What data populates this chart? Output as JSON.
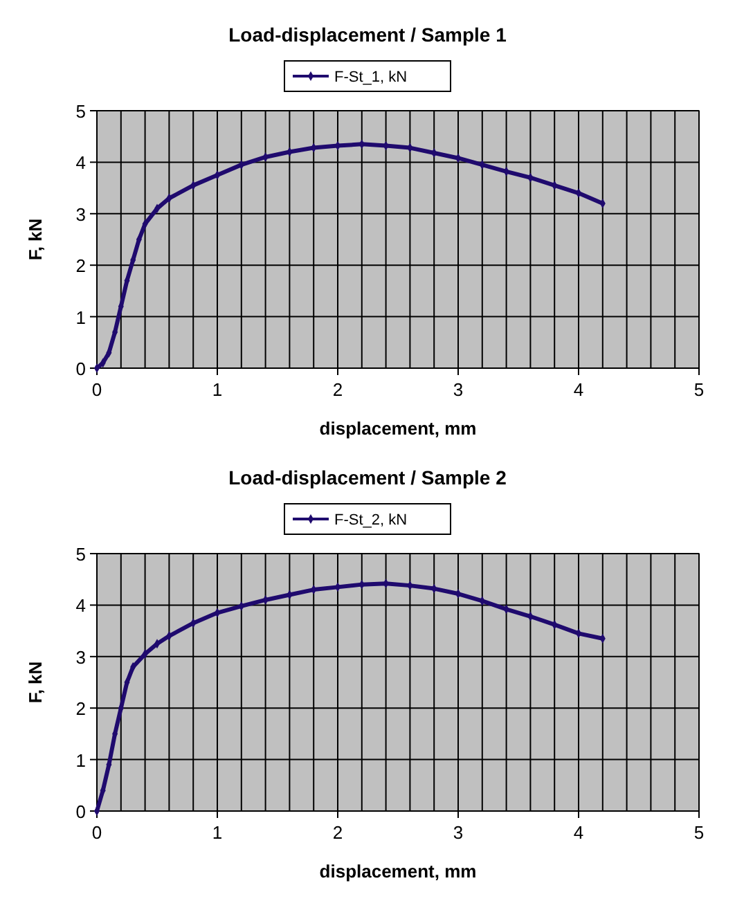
{
  "chart_data": [
    {
      "type": "line",
      "title": "Load-displacement / Sample 1",
      "xlabel": "displacement, mm",
      "ylabel": "F, kN",
      "legend": "top",
      "grid": true,
      "marker": "diamond",
      "line_style": "solid",
      "xlim": [
        0,
        5
      ],
      "ylim": [
        0,
        5
      ],
      "xticks": [
        0,
        {
          "value": 0.2,
          "label": null
        },
        {
          "value": 0.4,
          "label": null
        },
        {
          "value": 0.6,
          "label": null
        },
        {
          "value": 0.8,
          "label": null
        },
        1,
        {
          "value": 1.2,
          "label": null
        },
        {
          "value": 1.4,
          "label": null
        },
        {
          "value": 1.6,
          "label": null
        },
        {
          "value": 1.8,
          "label": null
        },
        2,
        {
          "value": 2.2,
          "label": null
        },
        {
          "value": 2.4,
          "label": null
        },
        {
          "value": 2.6,
          "label": null
        },
        {
          "value": 2.8,
          "label": null
        },
        3,
        {
          "value": 3.2,
          "label": null
        },
        {
          "value": 3.4,
          "label": null
        },
        {
          "value": 3.6,
          "label": null
        },
        {
          "value": 3.8,
          "label": null
        },
        4,
        {
          "value": 4.2,
          "label": null
        },
        {
          "value": 4.4,
          "label": null
        },
        {
          "value": 4.6,
          "label": null
        },
        {
          "value": 4.8,
          "label": null
        },
        5
      ],
      "yticks": [
        0,
        1,
        2,
        3,
        4,
        5
      ],
      "series": [
        {
          "name": "F-St_1, kN",
          "color": "#1f0a6e",
          "x": [
            0,
            0.05,
            0.1,
            0.15,
            0.2,
            0.25,
            0.3,
            0.35,
            0.4,
            0.5,
            0.6,
            0.8,
            1.0,
            1.2,
            1.4,
            1.6,
            1.8,
            2.0,
            2.2,
            2.4,
            2.6,
            2.8,
            3.0,
            3.2,
            3.4,
            3.6,
            3.8,
            4.0,
            4.2
          ],
          "values": [
            0,
            0.1,
            0.3,
            0.7,
            1.2,
            1.7,
            2.1,
            2.5,
            2.8,
            3.1,
            3.3,
            3.55,
            3.75,
            3.95,
            4.1,
            4.2,
            4.28,
            4.32,
            4.35,
            4.32,
            4.28,
            4.18,
            4.08,
            3.95,
            3.82,
            3.7,
            3.55,
            3.4,
            3.2
          ]
        }
      ]
    },
    {
      "type": "line",
      "title": "Load-displacement / Sample 2",
      "xlabel": "displacement, mm",
      "ylabel": "F, kN",
      "legend": "top",
      "grid": true,
      "marker": "diamond",
      "line_style": "solid",
      "xlim": [
        0,
        5
      ],
      "ylim": [
        0,
        5
      ],
      "xticks": [
        0,
        {
          "value": 0.2,
          "label": null
        },
        {
          "value": 0.4,
          "label": null
        },
        {
          "value": 0.6,
          "label": null
        },
        {
          "value": 0.8,
          "label": null
        },
        1,
        {
          "value": 1.2,
          "label": null
        },
        {
          "value": 1.4,
          "label": null
        },
        {
          "value": 1.6,
          "label": null
        },
        {
          "value": 1.8,
          "label": null
        },
        2,
        {
          "value": 2.2,
          "label": null
        },
        {
          "value": 2.4,
          "label": null
        },
        {
          "value": 2.6,
          "label": null
        },
        {
          "value": 2.8,
          "label": null
        },
        3,
        {
          "value": 3.2,
          "label": null
        },
        {
          "value": 3.4,
          "label": null
        },
        {
          "value": 3.6,
          "label": null
        },
        {
          "value": 3.8,
          "label": null
        },
        4,
        {
          "value": 4.2,
          "label": null
        },
        {
          "value": 4.4,
          "label": null
        },
        {
          "value": 4.6,
          "label": null
        },
        {
          "value": 4.8,
          "label": null
        },
        5
      ],
      "yticks": [
        0,
        1,
        2,
        3,
        4,
        5
      ],
      "series": [
        {
          "name": "F-St_2, kN",
          "color": "#1f0a6e",
          "x": [
            0,
            0.05,
            0.1,
            0.15,
            0.2,
            0.25,
            0.3,
            0.4,
            0.5,
            0.6,
            0.8,
            1.0,
            1.2,
            1.4,
            1.6,
            1.8,
            2.0,
            2.2,
            2.4,
            2.6,
            2.8,
            3.0,
            3.2,
            3.4,
            3.6,
            3.8,
            4.0,
            4.2
          ],
          "values": [
            0,
            0.4,
            0.9,
            1.5,
            2.0,
            2.5,
            2.8,
            3.05,
            3.25,
            3.4,
            3.65,
            3.85,
            3.98,
            4.1,
            4.2,
            4.3,
            4.35,
            4.4,
            4.42,
            4.38,
            4.32,
            4.22,
            4.08,
            3.92,
            3.78,
            3.62,
            3.45,
            3.35
          ]
        }
      ]
    }
  ]
}
